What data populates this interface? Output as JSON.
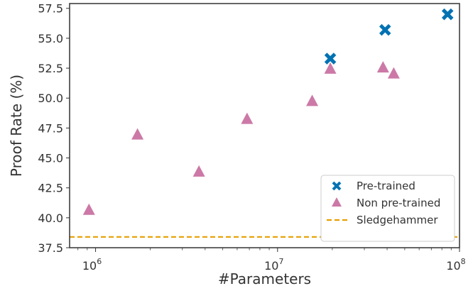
{
  "chart_data": {
    "type": "scatter",
    "xlabel": "#Parameters",
    "ylabel": "Proof Rate (%)",
    "xscale": "log",
    "xlim": [
      720000,
      100000000
    ],
    "ylim": [
      37.5,
      57.9
    ],
    "grid": false,
    "legend_position": "bottom-right",
    "yticks": [
      "37.5",
      "40.0",
      "42.5",
      "45.0",
      "47.5",
      "50.0",
      "52.5",
      "55.0",
      "57.5"
    ],
    "ytick_values": [
      37.5,
      40.0,
      42.5,
      45.0,
      47.5,
      50.0,
      52.5,
      55.0,
      57.5
    ],
    "xticks": [
      {
        "base": "10",
        "exp": "6",
        "value": 1000000
      },
      {
        "base": "10",
        "exp": "7",
        "value": 10000000
      },
      {
        "base": "10",
        "exp": "8",
        "value": 100000000
      }
    ],
    "series": [
      {
        "name": "Pre-trained",
        "marker": "x-icon",
        "color": "#0072b2",
        "points": [
          {
            "x": 19500000,
            "y": 53.3
          },
          {
            "x": 39000000,
            "y": 55.7
          },
          {
            "x": 86000000,
            "y": 57.0
          }
        ]
      },
      {
        "name": "Non pre-trained",
        "marker": "triangle-icon",
        "color": "#cc79a7",
        "points": [
          {
            "x": 920000,
            "y": 40.6
          },
          {
            "x": 1700000,
            "y": 46.9
          },
          {
            "x": 3700000,
            "y": 43.8
          },
          {
            "x": 6800000,
            "y": 48.2
          },
          {
            "x": 15500000,
            "y": 49.7
          },
          {
            "x": 19500000,
            "y": 52.4
          },
          {
            "x": 38000000,
            "y": 52.5
          },
          {
            "x": 43500000,
            "y": 52.0
          }
        ]
      }
    ],
    "baseline": {
      "name": "Sledgehammer",
      "y": 38.4,
      "color": "#e69f00",
      "style": "dashed"
    }
  }
}
